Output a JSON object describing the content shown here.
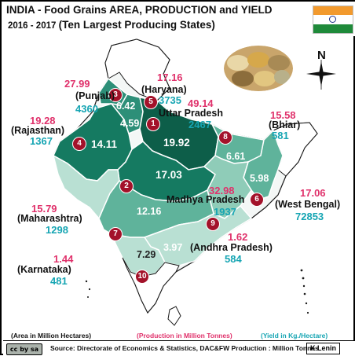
{
  "header": {
    "title": "INDIA - Food Grains  AREA, PRODUCTION and  YIELD",
    "years": "2016 - 2017",
    "subtitle": "(Ten Largest Producing States)"
  },
  "compass": {
    "north_label": "N",
    "icon": "compass-rose-icon"
  },
  "photo": {
    "icon": "food-grains-photo"
  },
  "colors": {
    "production": "#e0316b",
    "yield": "#16a5b3",
    "rank_marker": "#a3122a",
    "shade_darkest": "#0d5e49",
    "shade_dark": "#157a61",
    "shade_mid": "#2d8f78",
    "shade_light": "#5fb39b",
    "shade_lighter": "#8fccb8",
    "shade_pale": "#b9e0d3",
    "land_outline": "#ffffff"
  },
  "states": [
    {
      "rank": "1",
      "name": "Uttar  Pradesh",
      "area": "19.92",
      "production": "49.14",
      "yield": "2467"
    },
    {
      "rank": "2",
      "name": "Madhya Pradesh",
      "area": "17.03",
      "production": "32.98",
      "yield": "1937"
    },
    {
      "rank": "3",
      "name": "Punjab",
      "area": "6.42",
      "production": "27.99",
      "yield": "4360"
    },
    {
      "rank": "4",
      "name": "Rajasthan",
      "area": "14.11",
      "production": "19.28",
      "yield": "1367"
    },
    {
      "rank": "5",
      "name": "Haryana",
      "area": "4.59",
      "production": "17.16",
      "yield": "3735"
    },
    {
      "rank": "6",
      "name": "West Bengal",
      "area": "5.98",
      "production": "17.06",
      "yield": "72853"
    },
    {
      "rank": "7",
      "name": "Maharashtra",
      "area": "12.16",
      "production": "15.79",
      "yield": "1298"
    },
    {
      "rank": "8",
      "name": "Bhiar",
      "area": "6.61",
      "production": "15.58",
      "yield": "581"
    },
    {
      "rank": "9",
      "name": "Andhra Pradesh",
      "area": "3.97",
      "production": "1.62",
      "yield": "584"
    },
    {
      "rank": "10",
      "name": "Karnataka",
      "area": "7.29",
      "production": "1.44",
      "yield": "481"
    }
  ],
  "legend": {
    "area": "(Area in Million Hectares)",
    "production": "(Production in Million Tonnes)",
    "yield": "(Yield in Kg./Hectare)"
  },
  "footer": {
    "license": "cc by sa",
    "source": "Source: Directorate of Economics & Statistics, DAC&FW  Production : Million Tonnes",
    "author": "K Lenin"
  }
}
